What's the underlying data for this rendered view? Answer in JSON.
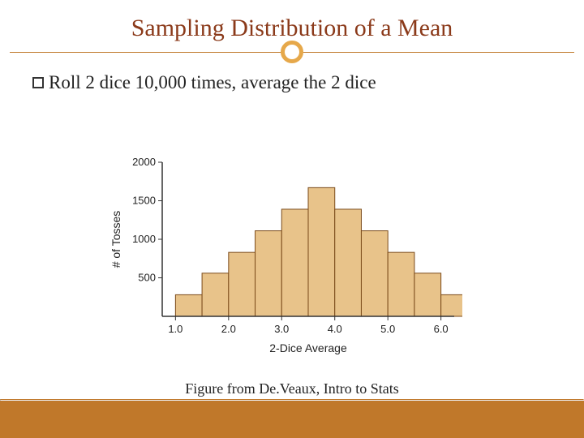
{
  "title": "Sampling Distribution of a Mean",
  "title_color": "#8b3a1a",
  "title_fontsize": 30,
  "accent_line_color": "#c0782a",
  "accent_circle_color": "#e6a84a",
  "bullet": {
    "text": "Roll 2 dice 10,000 times, average the 2 dice",
    "fontsize": 23,
    "color": "#222222"
  },
  "chart": {
    "type": "histogram",
    "xlabel": "2-Dice Average",
    "ylabel": "# of Tosses",
    "label_fontsize": 14,
    "tick_fontsize": 13,
    "xlim": [
      0.75,
      6.25
    ],
    "ylim": [
      0,
      2000
    ],
    "yticks": [
      500,
      1000,
      1500,
      2000
    ],
    "xticks": [
      1.0,
      2.0,
      3.0,
      4.0,
      5.0,
      6.0
    ],
    "xtick_labels": [
      "1.0",
      "2.0",
      "3.0",
      "4.0",
      "5.0",
      "6.0"
    ],
    "bin_edges": [
      1.0,
      1.5,
      2.0,
      2.5,
      3.0,
      3.5,
      4.0,
      4.5,
      5.0,
      5.5,
      6.0,
      6.5
    ],
    "bar_values": [
      280,
      560,
      830,
      1110,
      1390,
      1670,
      1390,
      1110,
      830,
      560,
      280
    ],
    "bar_fill": "#e8c38a",
    "bar_stroke": "#7a4a1a",
    "axis_color": "#333333",
    "text_color": "#222222",
    "background_color": "#ffffff",
    "bar_width_ratio": 1.0
  },
  "footer": {
    "text": "Figure from De.Veaux, Intro to Stats",
    "band_color": "#c0782a",
    "fontsize": 18
  }
}
